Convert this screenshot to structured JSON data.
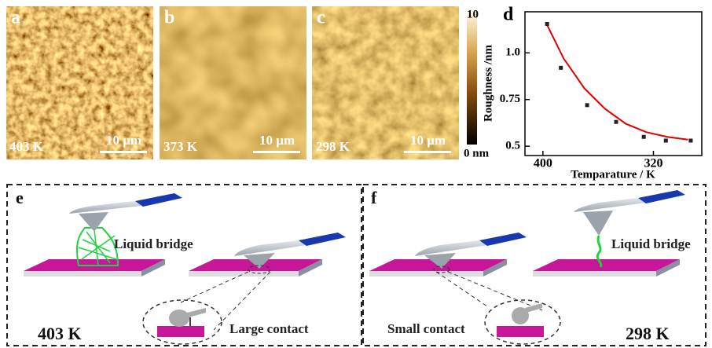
{
  "panels": [
    {
      "label": "a",
      "temperature": "403 K",
      "scale_bar": "10 μm"
    },
    {
      "label": "b",
      "temperature": "373 K",
      "scale_bar": "10 μm"
    },
    {
      "label": "c",
      "temperature": "298 K",
      "scale_bar": "10 μm"
    }
  ],
  "colorbar": {
    "max": "10",
    "min": "0 nm"
  },
  "chart_data": {
    "type": "scatter",
    "label": "d",
    "x_label": "Temparature / K",
    "y_label": "Roughness /nm",
    "x": [
      397,
      387,
      368,
      347,
      327,
      311,
      293
    ],
    "values": [
      1.155,
      0.92,
      0.72,
      0.63,
      0.55,
      0.53,
      0.53
    ],
    "color": "#222222",
    "fit_x": [
      397,
      385,
      370,
      355,
      340,
      325,
      310,
      295
    ],
    "fit_values": [
      1.15,
      0.97,
      0.81,
      0.7,
      0.62,
      0.575,
      0.55,
      0.535
    ],
    "fit_color": "#e00000",
    "xlim": [
      413,
      285
    ],
    "ylim": [
      0.45,
      1.22
    ],
    "xticks": [
      400,
      320
    ],
    "yticks": [
      0.5,
      0.75,
      {
        "value": 1,
        "label": "1.0"
      }
    ]
  },
  "schematics": [
    {
      "label": "e",
      "bridge_label": "Liquid bridge",
      "contact_label": "Large contact",
      "temperature": "403 K"
    },
    {
      "label": "f",
      "bridge_label": "Liquid bridge",
      "contact_label": "Small contact",
      "temperature": "298 K"
    }
  ]
}
